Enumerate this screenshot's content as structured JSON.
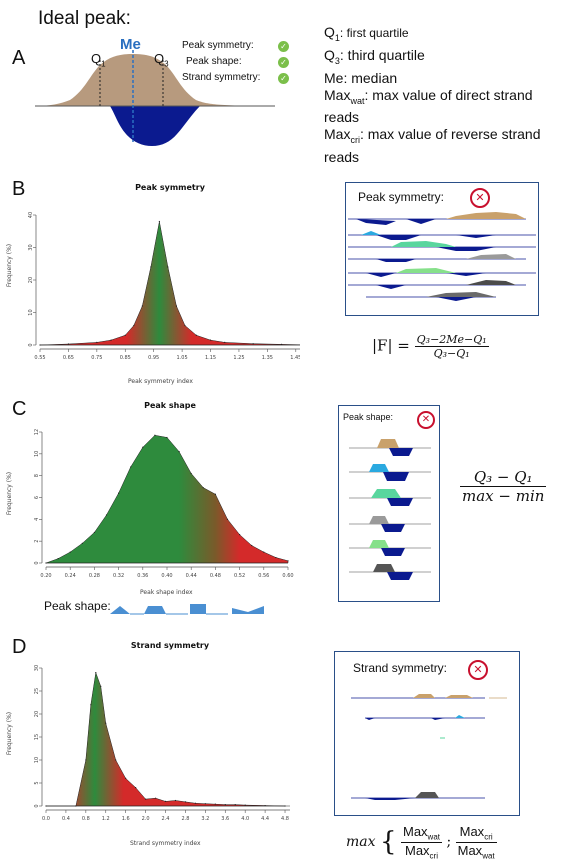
{
  "heading": "Ideal peak:",
  "panels": {
    "a": "A",
    "b": "B",
    "c": "C",
    "d": "D"
  },
  "panel_a": {
    "q1": "Q",
    "q1_sub": "1",
    "me": "Me",
    "q3": "Q",
    "q3_sub": "3",
    "checks": [
      "Peak symmetry:",
      "Peak shape:",
      "Strand symmetry:"
    ],
    "legend": {
      "q1_main": "Q",
      "q1_sub": "1",
      "q1_text": ": first quartile",
      "q3_main": "Q",
      "q3_sub": "3",
      "q3_text": ": third quartile",
      "me_text": "Me: median",
      "maxwat_main": "Max",
      "maxwat_sub": "wat",
      "maxwat_text": ": max value of direct strand",
      "maxwat_text2": "reads",
      "maxcri_main": "Max",
      "maxcri_sub": "cri",
      "maxcri_text": ": max value of reverse strand",
      "maxcri_text2": "reads"
    },
    "colors": {
      "top": "#b79a7e",
      "bottom": "#0b1a8f",
      "median": "#2a6fc0"
    }
  },
  "panel_b": {
    "box_title": "Peak symmetry:",
    "x_mark": "✕",
    "formula_lhs": "|F| =",
    "formula_num": "Q₃−2Me−Q₁",
    "formula_den": "Q₃−Q₁"
  },
  "panel_c": {
    "box_title": "Peak shape:",
    "x_mark": "✕",
    "formula_num": "Q₃ − Q₁",
    "formula_den": "max − min",
    "shape_label": "Peak shape:"
  },
  "panel_d": {
    "box_title": "Strand symmetry:",
    "x_mark": "✕",
    "formula_prefix": "max",
    "f1_num": "Max",
    "f1_num_sub": "wat",
    "f1_den": "Max",
    "f1_den_sub": "cri",
    "sep": ";",
    "f2_num": "Max",
    "f2_num_sub": "cri",
    "f2_den": "Max",
    "f2_den_sub": "wat"
  },
  "chart_data": [
    {
      "type": "area",
      "title": "Peak symmetry",
      "xlabel": "Peak symmetry index",
      "ylabel": "Frequency (%)",
      "x_ticks": [
        "0.55",
        "0.65",
        "0.75",
        "0.85",
        "0.95",
        "1.05",
        "1.15",
        "1.25",
        "1.35",
        "1.45"
      ],
      "y_ticks": [
        "0",
        "10",
        "20",
        "30",
        "40"
      ],
      "xlim": [
        0.55,
        1.5
      ],
      "ylim": [
        0,
        40
      ],
      "x": [
        0.55,
        0.65,
        0.75,
        0.8,
        0.85,
        0.88,
        0.91,
        0.94,
        0.97,
        1.0,
        1.03,
        1.06,
        1.1,
        1.15,
        1.2,
        1.3,
        1.4,
        1.5
      ],
      "y": [
        0,
        0.3,
        0.8,
        1.5,
        3,
        6,
        12,
        24,
        38,
        24,
        12,
        6,
        3,
        1.5,
        0.8,
        0.4,
        0.2,
        0
      ],
      "colors": {
        "edge": "#d42a2a",
        "center": "#2e8b3d"
      }
    },
    {
      "type": "area",
      "title": "Peak shape",
      "xlabel": "Peak shape index",
      "ylabel": "Frequency (%)",
      "x_ticks": [
        "0.20",
        "0.24",
        "0.28",
        "0.32",
        "0.36",
        "0.40",
        "0.44",
        "0.48",
        "0.52",
        "0.56",
        "0.60"
      ],
      "y_ticks": [
        "0",
        "2",
        "4",
        "6",
        "8",
        "10",
        "12"
      ],
      "xlim": [
        0.2,
        0.6
      ],
      "ylim": [
        0,
        12
      ],
      "x": [
        0.2,
        0.22,
        0.24,
        0.26,
        0.28,
        0.3,
        0.32,
        0.34,
        0.36,
        0.38,
        0.4,
        0.42,
        0.44,
        0.46,
        0.48,
        0.5,
        0.52,
        0.54,
        0.56,
        0.58,
        0.6
      ],
      "y": [
        0,
        0.4,
        1.0,
        1.8,
        2.8,
        4.4,
        6.4,
        8.8,
        10.6,
        11.7,
        11.5,
        10.2,
        8.2,
        6.9,
        6.3,
        4.0,
        2.6,
        1.6,
        1.0,
        0.5,
        0.2
      ],
      "colors": {
        "edge": "#d42a2a",
        "center": "#2e8b3d"
      }
    },
    {
      "type": "area",
      "title": "Strand symmetry",
      "xlabel": "Strand symmetry index",
      "ylabel": "Frequency (%)",
      "x_ticks": [
        "0.0",
        "0.4",
        "0.8",
        "1.2",
        "1.6",
        "2.0",
        "2.4",
        "2.8",
        "3.2",
        "3.6",
        "4.0",
        "4.4",
        "4.8"
      ],
      "y_ticks": [
        "0",
        "5",
        "10",
        "15",
        "20",
        "25",
        "30"
      ],
      "xlim": [
        0.0,
        4.9
      ],
      "ylim": [
        0,
        30
      ],
      "x": [
        0.0,
        0.6,
        0.8,
        0.9,
        1.0,
        1.1,
        1.2,
        1.4,
        1.6,
        1.8,
        2.0,
        2.2,
        2.4,
        2.6,
        2.8,
        3.0,
        3.2,
        3.4,
        3.6,
        3.8,
        4.0,
        4.4,
        4.8
      ],
      "y": [
        0,
        0,
        10,
        22,
        29,
        26,
        18,
        10,
        6,
        4,
        1.5,
        1.7,
        1.0,
        1.2,
        0.9,
        0.6,
        0.5,
        0.4,
        0.3,
        0.3,
        0.2,
        0.1,
        0
      ],
      "colors": {
        "edge": "#d42a2a",
        "center": "#2e8b3d"
      }
    }
  ]
}
